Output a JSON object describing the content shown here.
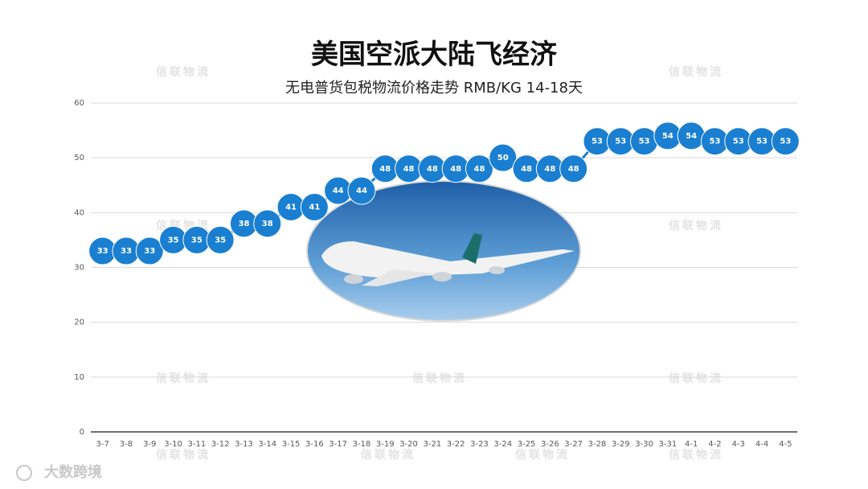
{
  "chart_data": {
    "type": "line",
    "title": "美国空派大陆飞经济",
    "subtitle": "无电普货包税物流价格走势 RMB/KG  14-18天",
    "watermark": "信联物流",
    "logo_text": "大数跨境",
    "categories": [
      "3-7",
      "3-8",
      "3-9",
      "3-10",
      "3-11",
      "3-12",
      "3-13",
      "3-14",
      "3-15",
      "3-16",
      "3-17",
      "3-18",
      "3-19",
      "3-20",
      "3-21",
      "3-22",
      "3-23",
      "3-24",
      "3-25",
      "3-26",
      "3-27",
      "3-28",
      "3-29",
      "3-30",
      "3-31",
      "4-1",
      "4-2",
      "4-3",
      "4-4",
      "4-5"
    ],
    "series": [
      {
        "color": "#1a7fd0",
        "values": [
          33,
          33,
          33,
          35,
          35,
          35,
          38,
          38,
          41,
          41,
          44,
          44,
          48,
          48,
          48,
          48,
          48,
          50,
          48,
          48,
          48,
          53,
          53,
          53,
          54,
          54,
          53,
          53,
          53,
          53
        ]
      }
    ],
    "ylim": [
      0,
      60
    ],
    "yticks": [
      0,
      10,
      20,
      30,
      40,
      50,
      60
    ],
    "grid": true
  }
}
